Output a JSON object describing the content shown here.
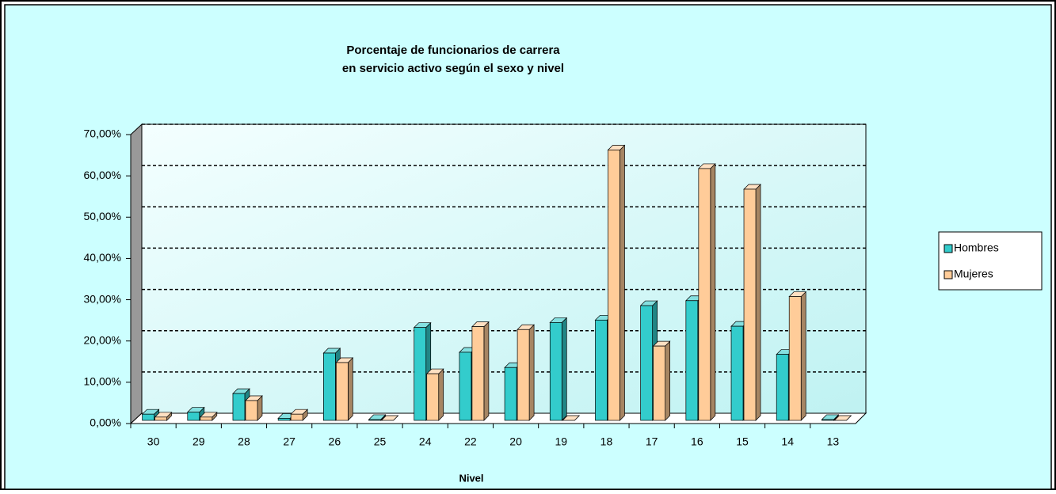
{
  "chart_data": {
    "type": "bar3d",
    "title": [
      "Porcentaje de funcionarios de carrera",
      "en servicio activo según el sexo y nivel"
    ],
    "x_label": "Nivel",
    "categories": [
      "30",
      "29",
      "28",
      "27",
      "26",
      "25",
      "24",
      "22",
      "20",
      "19",
      "18",
      "17",
      "16",
      "15",
      "14",
      "13"
    ],
    "series": [
      {
        "name": "Hombres",
        "color": "#33cccc",
        "values": [
          1.5,
          2,
          6.5,
          0.5,
          16.3,
          0.2,
          22.5,
          16.5,
          12.8,
          23.7,
          24.3,
          27.8,
          29,
          22.8,
          16,
          0.2
        ]
      },
      {
        "name": "Mujeres",
        "color": "#ffcc99",
        "values": [
          0.8,
          0.8,
          4.8,
          1.5,
          14,
          0,
          11.3,
          22.7,
          22,
          0,
          65.5,
          18,
          61,
          56,
          30,
          0
        ]
      }
    ],
    "ylim": [
      0,
      70
    ],
    "yticks": [
      {
        "value": 0,
        "label": "0,00%"
      },
      {
        "value": 10,
        "label": "10,00%"
      },
      {
        "value": 20,
        "label": "20,00%"
      },
      {
        "value": 30,
        "label": "30,00%"
      },
      {
        "value": 40,
        "label": "40,00%"
      },
      {
        "value": 50,
        "label": "50,00%"
      },
      {
        "value": 60,
        "label": "60,00%"
      },
      {
        "value": 70,
        "label": "70,00%"
      }
    ],
    "grid": true,
    "legend": "right"
  }
}
